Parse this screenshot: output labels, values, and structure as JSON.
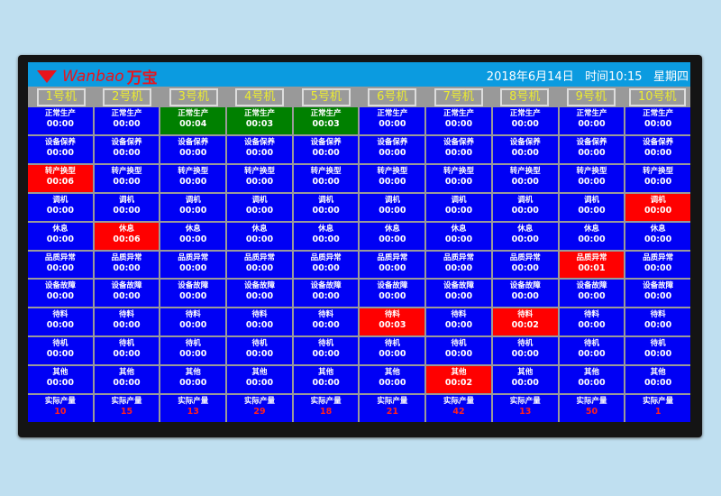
{
  "header": {
    "brand": "Wanbao",
    "brand_cn": "万宝",
    "date": "2018年6月14日",
    "time": "时间10:15",
    "weekday": "星期四"
  },
  "colors": {
    "normal": "#0000f5",
    "alert": "#ff0000",
    "running": "#008000",
    "header": "#0b9be0",
    "machine_label": "#ecec30"
  },
  "machines": [
    "1号机",
    "2号机",
    "3号机",
    "4号机",
    "5号机",
    "6号机",
    "7号机",
    "8号机",
    "9号机",
    "10号机"
  ],
  "rows": [
    {
      "label": "正常生产",
      "values": [
        "00:00",
        "00:00",
        "00:04",
        "00:03",
        "00:03",
        "00:00",
        "00:00",
        "00:00",
        "00:00",
        "00:00"
      ],
      "states": [
        "",
        "",
        "green",
        "green",
        "green",
        "",
        "",
        "",
        "",
        ""
      ]
    },
    {
      "label": "设备保养",
      "values": [
        "00:00",
        "00:00",
        "00:00",
        "00:00",
        "00:00",
        "00:00",
        "00:00",
        "00:00",
        "00:00",
        "00:00"
      ],
      "states": [
        "",
        "",
        "",
        "",
        "",
        "",
        "",
        "",
        "",
        ""
      ]
    },
    {
      "label": "转产换型",
      "values": [
        "00:06",
        "00:00",
        "00:00",
        "00:00",
        "00:00",
        "00:00",
        "00:00",
        "00:00",
        "00:00",
        "00:00"
      ],
      "states": [
        "red",
        "",
        "",
        "",
        "",
        "",
        "",
        "",
        "",
        ""
      ]
    },
    {
      "label": "调机",
      "values": [
        "00:00",
        "00:00",
        "00:00",
        "00:00",
        "00:00",
        "00:00",
        "00:00",
        "00:00",
        "00:00",
        "00:00"
      ],
      "states": [
        "",
        "",
        "",
        "",
        "",
        "",
        "",
        "",
        "",
        "red"
      ]
    },
    {
      "label": "休息",
      "values": [
        "00:00",
        "00:06",
        "00:00",
        "00:00",
        "00:00",
        "00:00",
        "00:00",
        "00:00",
        "00:00",
        "00:00"
      ],
      "states": [
        "",
        "red",
        "",
        "",
        "",
        "",
        "",
        "",
        "",
        ""
      ]
    },
    {
      "label": "品质异常",
      "values": [
        "00:00",
        "00:00",
        "00:00",
        "00:00",
        "00:00",
        "00:00",
        "00:00",
        "00:00",
        "00:01",
        "00:00"
      ],
      "states": [
        "",
        "",
        "",
        "",
        "",
        "",
        "",
        "",
        "red",
        ""
      ]
    },
    {
      "label": "设备故障",
      "values": [
        "00:00",
        "00:00",
        "00:00",
        "00:00",
        "00:00",
        "00:00",
        "00:00",
        "00:00",
        "00:00",
        "00:00"
      ],
      "states": [
        "",
        "",
        "",
        "",
        "",
        "",
        "",
        "",
        "",
        ""
      ]
    },
    {
      "label": "待料",
      "values": [
        "00:00",
        "00:00",
        "00:00",
        "00:00",
        "00:00",
        "00:03",
        "00:00",
        "00:02",
        "00:00",
        "00:00"
      ],
      "states": [
        "",
        "",
        "",
        "",
        "",
        "red",
        "",
        "red",
        "",
        ""
      ]
    },
    {
      "label": "待机",
      "values": [
        "00:00",
        "00:00",
        "00:00",
        "00:00",
        "00:00",
        "00:00",
        "00:00",
        "00:00",
        "00:00",
        "00:00"
      ],
      "states": [
        "",
        "",
        "",
        "",
        "",
        "",
        "",
        "",
        "",
        ""
      ]
    },
    {
      "label": "其他",
      "values": [
        "00:00",
        "00:00",
        "00:00",
        "00:00",
        "00:00",
        "00:00",
        "00:02",
        "00:00",
        "00:00",
        "00:00"
      ],
      "states": [
        "",
        "",
        "",
        "",
        "",
        "",
        "red",
        "",
        "",
        ""
      ]
    }
  ],
  "output": {
    "label": "实际产量",
    "values": [
      "10",
      "15",
      "13",
      "29",
      "18",
      "21",
      "42",
      "13",
      "50",
      "1"
    ]
  }
}
